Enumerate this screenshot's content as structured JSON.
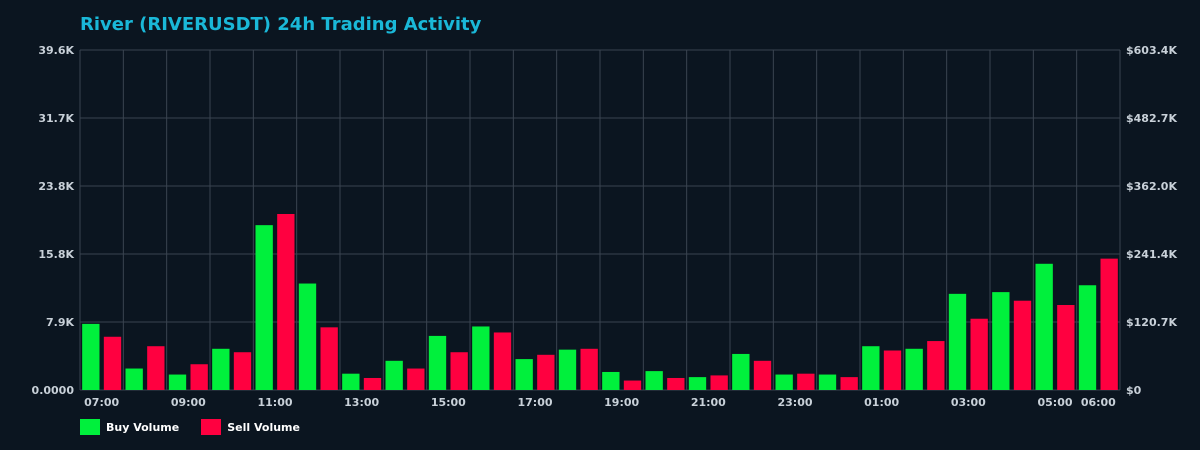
{
  "chart_data": {
    "type": "bar",
    "title": "River (RIVERUSDT) 24h Trading Activity",
    "categories": [
      "07:00",
      "08:00",
      "09:00",
      "10:00",
      "11:00",
      "12:00",
      "13:00",
      "14:00",
      "15:00",
      "16:00",
      "17:00",
      "18:00",
      "19:00",
      "20:00",
      "21:00",
      "22:00",
      "23:00",
      "00:00",
      "01:00",
      "02:00",
      "03:00",
      "04:00",
      "05:00",
      "06:00"
    ],
    "x_tick_labels": [
      "07:00",
      "09:00",
      "11:00",
      "13:00",
      "15:00",
      "17:00",
      "19:00",
      "21:00",
      "23:00",
      "01:00",
      "03:00",
      "05:00",
      "06:00"
    ],
    "series": [
      {
        "name": "Buy Volume",
        "color": "#00f03c",
        "values": [
          7700,
          2500,
          1800,
          4800,
          19200,
          12400,
          1900,
          3400,
          6300,
          7400,
          3600,
          4700,
          2100,
          2200,
          1500,
          4200,
          1800,
          1800,
          5100,
          4800,
          11200,
          11400,
          14700,
          12200
        ]
      },
      {
        "name": "Sell Volume",
        "color": "#ff0040",
        "values": [
          6200,
          5100,
          3000,
          4400,
          20500,
          7300,
          1400,
          2500,
          4400,
          6700,
          4100,
          4800,
          1100,
          1400,
          1700,
          3400,
          1900,
          1500,
          4600,
          5700,
          8300,
          10400,
          9900,
          15300
        ]
      }
    ],
    "y_left_ticks": [
      "0.0000",
      "7.9K",
      "15.8K",
      "23.8K",
      "31.7K",
      "39.6K"
    ],
    "y_right_ticks": [
      "$0",
      "$120.7K",
      "$241.4K",
      "$362.0K",
      "$482.7K",
      "$603.4K"
    ],
    "ylim": [
      0,
      39600
    ],
    "grid": true,
    "legend_position": "bottom-left"
  },
  "colors": {
    "background": "#0b1520",
    "grid": "#3a4450",
    "title": "#1ab8d8",
    "text": "#c9d1d9"
  }
}
